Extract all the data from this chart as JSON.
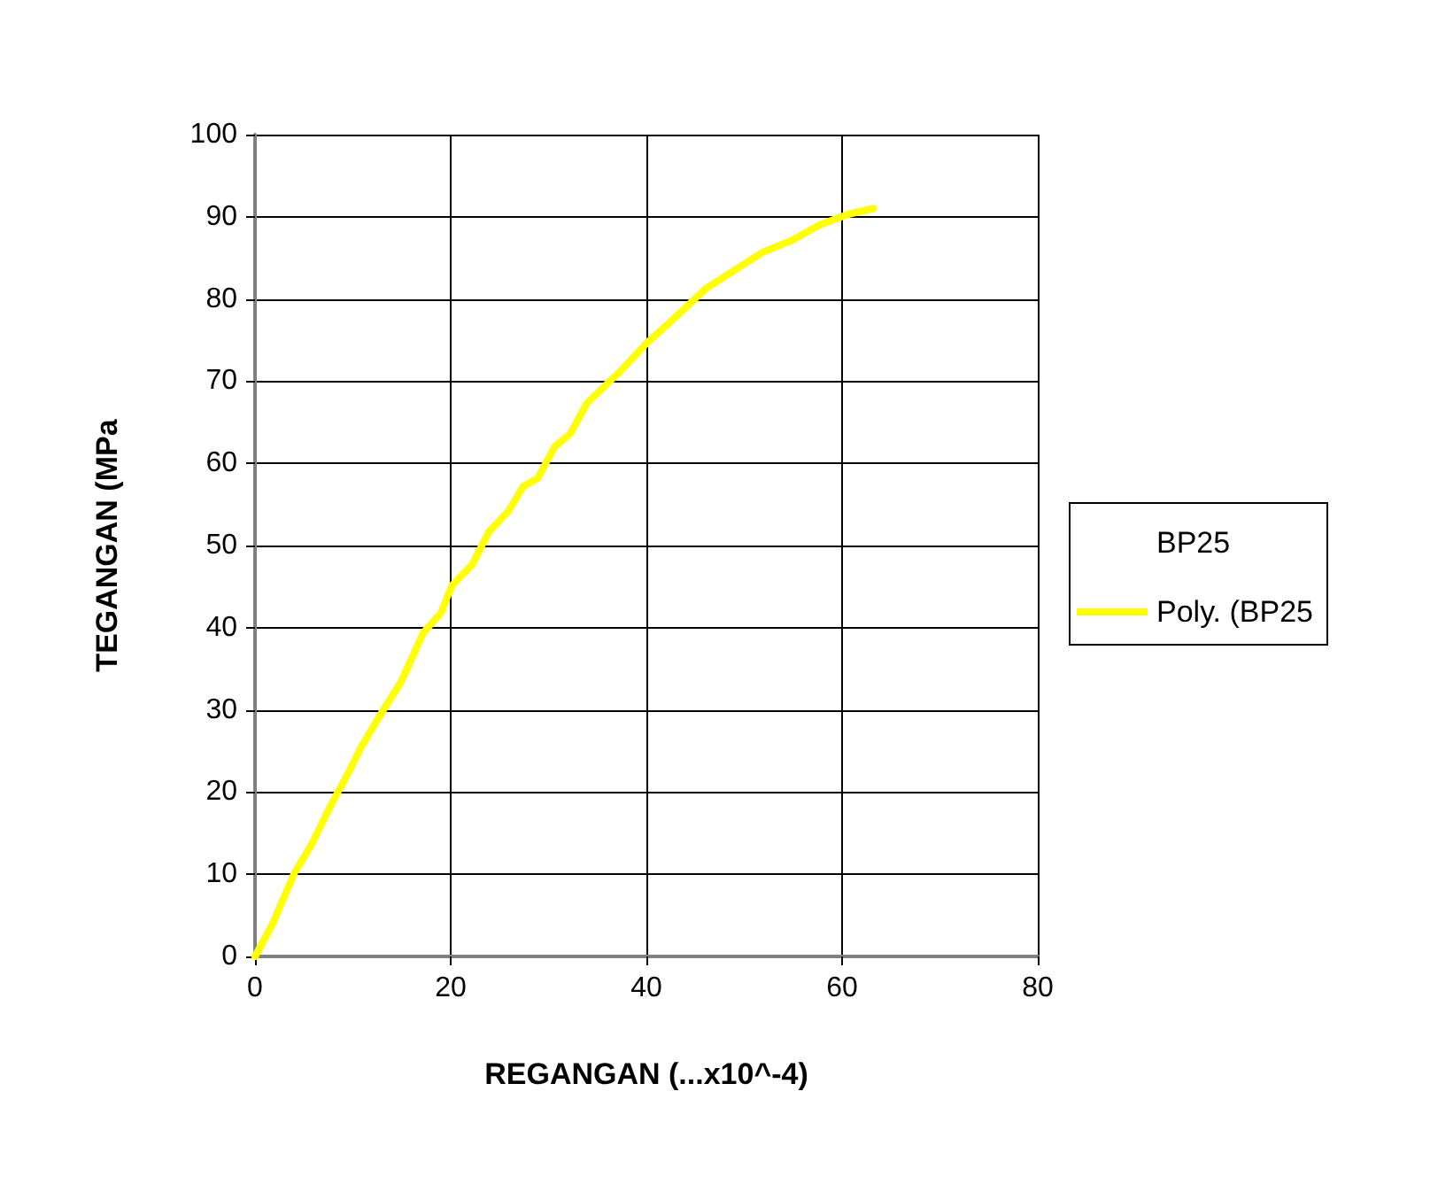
{
  "chart_data": {
    "type": "line",
    "xlabel": "REGANGAN (...x10^-4)",
    "ylabel": "TEGANGAN (MPa",
    "xlim": [
      0,
      80
    ],
    "xticks": [
      0,
      20,
      40,
      60,
      80
    ],
    "ylim": [
      0,
      100
    ],
    "yticks": [
      0,
      10,
      20,
      30,
      40,
      50,
      60,
      70,
      80,
      90,
      100
    ],
    "grid": true,
    "legend": "right",
    "marker": "none",
    "series": [
      {
        "name": "BP25",
        "type": "scatter",
        "marker": "none"
      },
      {
        "name": "Poly. (BP25",
        "color": "#ffff00",
        "x": [
          0,
          1.75,
          4.0,
          5.8,
          7.6,
          9.6,
          10.8,
          12.8,
          14.9,
          17.2,
          19.0,
          20.1,
          22.2,
          23.9,
          25.9,
          27.4,
          28.9,
          30.6,
          32.2,
          33.9,
          37.4,
          40,
          42.6,
          46.1,
          49.0,
          51.9,
          54.8,
          57.7,
          60.6,
          63.2
        ],
        "values": [
          0,
          3.9,
          10.1,
          13.7,
          18.1,
          22.5,
          25.4,
          29.4,
          33.4,
          39.4,
          41.8,
          45.1,
          47.7,
          51.7,
          54.2,
          57.2,
          58.2,
          62.0,
          63.6,
          67.3,
          71.3,
          74.6,
          77.4,
          81.3,
          83.5,
          85.7,
          87.1,
          89.0,
          90.3,
          91.0
        ]
      }
    ]
  }
}
